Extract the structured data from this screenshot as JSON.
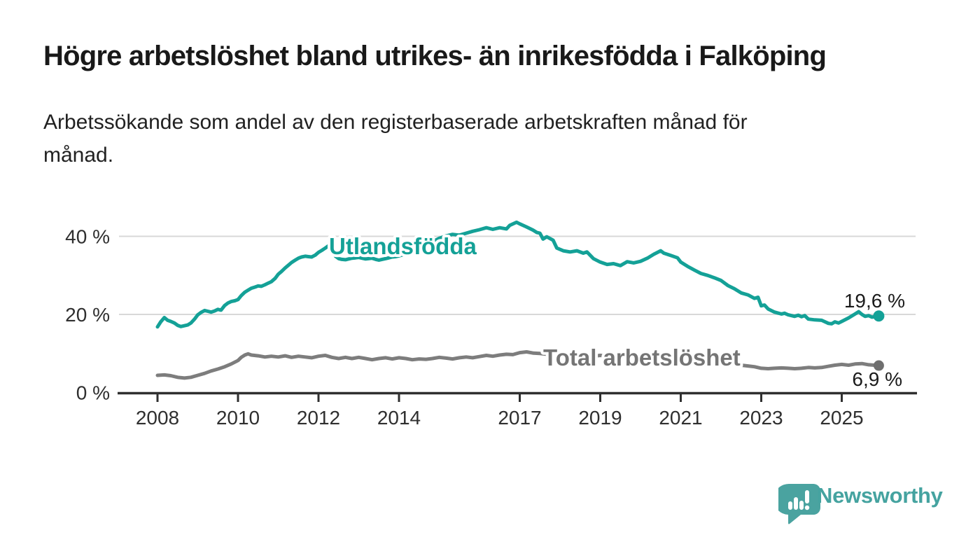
{
  "header": {
    "title": "Högre arbetslöshet bland utrikes- än inrikesfödda i Falköping",
    "subtitle_line1": "Arbetssökande som andel av den registerbaserade arbetskraften månad för",
    "subtitle_line2": "månad."
  },
  "footer": {
    "brand": "Newsworthy",
    "brand_color": "#45a3a0"
  },
  "colors": {
    "teal": "#14a197",
    "gray_line": "#7d7d7d",
    "gray_dot": "#6f6f6f",
    "gray_label": "#757575",
    "gridline": "#d8d8d8",
    "axis": "#2f2f2f",
    "tick_text": "#2f2f2f",
    "value_label": "#1a1a1a"
  },
  "chart_data": {
    "type": "line",
    "title": "",
    "xlabel": "",
    "ylabel": "",
    "x_ticks": [
      2008,
      2010,
      2012,
      2014,
      2017,
      2019,
      2021,
      2023,
      2025
    ],
    "y_ticks": [
      {
        "v": 0,
        "label": "0 %"
      },
      {
        "v": 20,
        "label": "20 %"
      },
      {
        "v": 40,
        "label": "40 %"
      }
    ],
    "xlim": [
      2008,
      2026.1
    ],
    "ylim": [
      0,
      46
    ],
    "grid": "horizontal-only",
    "legend_position": "inline-labels",
    "series": [
      {
        "name": "Utlandsfödda",
        "color": "#14a197",
        "end_label": "19,6 %",
        "end_value": 19.6,
        "points": [
          [
            2008.0,
            16.8
          ],
          [
            2008.08,
            18.1
          ],
          [
            2008.17,
            19.2
          ],
          [
            2008.25,
            18.5
          ],
          [
            2008.33,
            18.2
          ],
          [
            2008.42,
            17.8
          ],
          [
            2008.5,
            17.2
          ],
          [
            2008.58,
            16.9
          ],
          [
            2008.75,
            17.3
          ],
          [
            2008.83,
            17.8
          ],
          [
            2008.92,
            18.8
          ],
          [
            2009.0,
            19.9
          ],
          [
            2009.08,
            20.5
          ],
          [
            2009.17,
            21.0
          ],
          [
            2009.25,
            20.8
          ],
          [
            2009.33,
            20.6
          ],
          [
            2009.42,
            20.9
          ],
          [
            2009.5,
            21.3
          ],
          [
            2009.58,
            21.1
          ],
          [
            2009.67,
            22.3
          ],
          [
            2009.75,
            22.9
          ],
          [
            2009.83,
            23.3
          ],
          [
            2009.92,
            23.5
          ],
          [
            2010.0,
            23.8
          ],
          [
            2010.08,
            24.8
          ],
          [
            2010.17,
            25.7
          ],
          [
            2010.25,
            26.2
          ],
          [
            2010.33,
            26.7
          ],
          [
            2010.42,
            27.0
          ],
          [
            2010.5,
            27.3
          ],
          [
            2010.58,
            27.2
          ],
          [
            2010.67,
            27.6
          ],
          [
            2010.75,
            28.0
          ],
          [
            2010.83,
            28.4
          ],
          [
            2010.92,
            29.2
          ],
          [
            2011.0,
            30.3
          ],
          [
            2011.08,
            31.0
          ],
          [
            2011.17,
            31.9
          ],
          [
            2011.25,
            32.6
          ],
          [
            2011.33,
            33.3
          ],
          [
            2011.42,
            33.9
          ],
          [
            2011.5,
            34.4
          ],
          [
            2011.58,
            34.7
          ],
          [
            2011.67,
            34.9
          ],
          [
            2011.75,
            34.8
          ],
          [
            2011.83,
            34.7
          ],
          [
            2011.92,
            35.2
          ],
          [
            2012.0,
            35.9
          ],
          [
            2012.08,
            36.4
          ],
          [
            2012.17,
            37.0
          ],
          [
            2012.25,
            37.6
          ],
          [
            2012.33,
            36.7
          ],
          [
            2012.42,
            34.9
          ],
          [
            2012.5,
            34.3
          ],
          [
            2012.58,
            34.1
          ],
          [
            2012.67,
            34.0
          ],
          [
            2012.75,
            34.2
          ],
          [
            2012.83,
            34.4
          ],
          [
            2012.92,
            34.5
          ],
          [
            2013.0,
            34.6
          ],
          [
            2013.08,
            34.4
          ],
          [
            2013.17,
            34.2
          ],
          [
            2013.25,
            34.3
          ],
          [
            2013.33,
            34.4
          ],
          [
            2013.42,
            34.1
          ],
          [
            2013.5,
            33.9
          ],
          [
            2013.58,
            34.1
          ],
          [
            2013.67,
            34.3
          ],
          [
            2013.75,
            34.5
          ],
          [
            2013.83,
            34.7
          ],
          [
            2013.92,
            34.8
          ],
          [
            2014.0,
            35.0
          ],
          [
            2014.17,
            35.5
          ],
          [
            2014.33,
            36.1
          ],
          [
            2014.5,
            36.8
          ],
          [
            2014.67,
            37.6
          ],
          [
            2014.83,
            38.6
          ],
          [
            2015.0,
            39.5
          ],
          [
            2015.17,
            40.1
          ],
          [
            2015.33,
            40.5
          ],
          [
            2015.5,
            40.3
          ],
          [
            2015.67,
            40.8
          ],
          [
            2015.83,
            41.3
          ],
          [
            2016.0,
            41.7
          ],
          [
            2016.17,
            42.2
          ],
          [
            2016.33,
            41.8
          ],
          [
            2016.5,
            42.2
          ],
          [
            2016.67,
            41.9
          ],
          [
            2016.75,
            42.8
          ],
          [
            2016.92,
            43.6
          ],
          [
            2017.0,
            43.2
          ],
          [
            2017.17,
            42.4
          ],
          [
            2017.33,
            41.6
          ],
          [
            2017.42,
            41.0
          ],
          [
            2017.5,
            40.8
          ],
          [
            2017.58,
            39.3
          ],
          [
            2017.67,
            39.9
          ],
          [
            2017.83,
            39.0
          ],
          [
            2017.92,
            37.0
          ],
          [
            2018.08,
            36.3
          ],
          [
            2018.25,
            36.0
          ],
          [
            2018.42,
            36.3
          ],
          [
            2018.58,
            35.7
          ],
          [
            2018.67,
            36.0
          ],
          [
            2018.83,
            34.3
          ],
          [
            2019.0,
            33.4
          ],
          [
            2019.17,
            32.8
          ],
          [
            2019.33,
            33.0
          ],
          [
            2019.5,
            32.5
          ],
          [
            2019.67,
            33.5
          ],
          [
            2019.83,
            33.2
          ],
          [
            2020.0,
            33.6
          ],
          [
            2020.17,
            34.4
          ],
          [
            2020.33,
            35.4
          ],
          [
            2020.5,
            36.3
          ],
          [
            2020.58,
            35.7
          ],
          [
            2020.75,
            35.1
          ],
          [
            2020.92,
            34.5
          ],
          [
            2021.0,
            33.4
          ],
          [
            2021.17,
            32.3
          ],
          [
            2021.33,
            31.4
          ],
          [
            2021.5,
            30.5
          ],
          [
            2021.67,
            30.0
          ],
          [
            2021.83,
            29.4
          ],
          [
            2022.0,
            28.7
          ],
          [
            2022.17,
            27.4
          ],
          [
            2022.33,
            26.6
          ],
          [
            2022.5,
            25.5
          ],
          [
            2022.67,
            25.0
          ],
          [
            2022.83,
            24.1
          ],
          [
            2022.92,
            24.4
          ],
          [
            2023.0,
            22.2
          ],
          [
            2023.08,
            22.4
          ],
          [
            2023.17,
            21.4
          ],
          [
            2023.33,
            20.6
          ],
          [
            2023.5,
            20.1
          ],
          [
            2023.58,
            20.3
          ],
          [
            2023.67,
            19.9
          ],
          [
            2023.83,
            19.5
          ],
          [
            2023.92,
            19.8
          ],
          [
            2024.0,
            19.4
          ],
          [
            2024.08,
            19.7
          ],
          [
            2024.17,
            18.8
          ],
          [
            2024.33,
            18.6
          ],
          [
            2024.5,
            18.5
          ],
          [
            2024.67,
            17.7
          ],
          [
            2024.75,
            17.6
          ],
          [
            2024.83,
            18.1
          ],
          [
            2024.92,
            17.8
          ],
          [
            2025.0,
            18.2
          ],
          [
            2025.17,
            19.1
          ],
          [
            2025.33,
            20.1
          ],
          [
            2025.42,
            20.7
          ],
          [
            2025.5,
            20.0
          ],
          [
            2025.58,
            19.5
          ],
          [
            2025.67,
            19.7
          ],
          [
            2025.75,
            19.3
          ],
          [
            2025.92,
            19.6
          ]
        ]
      },
      {
        "name": "Total arbetslöshet",
        "color": "#7d7d7d",
        "end_label": "6,9 %",
        "end_value": 6.9,
        "points": [
          [
            2008.0,
            4.4
          ],
          [
            2008.17,
            4.5
          ],
          [
            2008.33,
            4.3
          ],
          [
            2008.5,
            3.9
          ],
          [
            2008.67,
            3.7
          ],
          [
            2008.83,
            3.9
          ],
          [
            2009.0,
            4.4
          ],
          [
            2009.17,
            4.9
          ],
          [
            2009.33,
            5.5
          ],
          [
            2009.5,
            6.0
          ],
          [
            2009.67,
            6.6
          ],
          [
            2009.83,
            7.3
          ],
          [
            2010.0,
            8.2
          ],
          [
            2010.08,
            9.0
          ],
          [
            2010.17,
            9.6
          ],
          [
            2010.25,
            9.9
          ],
          [
            2010.33,
            9.6
          ],
          [
            2010.5,
            9.4
          ],
          [
            2010.67,
            9.1
          ],
          [
            2010.83,
            9.3
          ],
          [
            2011.0,
            9.1
          ],
          [
            2011.17,
            9.4
          ],
          [
            2011.33,
            9.0
          ],
          [
            2011.5,
            9.3
          ],
          [
            2011.67,
            9.1
          ],
          [
            2011.83,
            8.9
          ],
          [
            2012.0,
            9.3
          ],
          [
            2012.17,
            9.5
          ],
          [
            2012.33,
            9.0
          ],
          [
            2012.5,
            8.7
          ],
          [
            2012.67,
            9.0
          ],
          [
            2012.83,
            8.7
          ],
          [
            2013.0,
            9.0
          ],
          [
            2013.17,
            8.7
          ],
          [
            2013.33,
            8.4
          ],
          [
            2013.5,
            8.7
          ],
          [
            2013.67,
            8.9
          ],
          [
            2013.83,
            8.6
          ],
          [
            2014.0,
            8.9
          ],
          [
            2014.17,
            8.7
          ],
          [
            2014.33,
            8.4
          ],
          [
            2014.5,
            8.6
          ],
          [
            2014.67,
            8.5
          ],
          [
            2014.83,
            8.7
          ],
          [
            2015.0,
            9.0
          ],
          [
            2015.17,
            8.8
          ],
          [
            2015.33,
            8.6
          ],
          [
            2015.5,
            8.9
          ],
          [
            2015.67,
            9.1
          ],
          [
            2015.83,
            8.9
          ],
          [
            2016.0,
            9.2
          ],
          [
            2016.17,
            9.5
          ],
          [
            2016.33,
            9.3
          ],
          [
            2016.5,
            9.6
          ],
          [
            2016.67,
            9.8
          ],
          [
            2016.83,
            9.7
          ],
          [
            2017.0,
            10.2
          ],
          [
            2017.17,
            10.4
          ],
          [
            2017.33,
            10.1
          ],
          [
            2017.5,
            10.0
          ],
          [
            2017.67,
            9.8
          ],
          [
            2017.83,
            9.6
          ],
          [
            2018.0,
            9.9
          ],
          [
            2018.17,
            9.7
          ],
          [
            2018.33,
            9.5
          ],
          [
            2018.5,
            9.7
          ],
          [
            2018.67,
            9.5
          ],
          [
            2018.83,
            9.3
          ],
          [
            2019.0,
            9.5
          ],
          [
            2019.17,
            9.3
          ],
          [
            2019.33,
            9.1
          ],
          [
            2019.5,
            9.3
          ],
          [
            2019.67,
            9.4
          ],
          [
            2019.83,
            9.2
          ],
          [
            2020.0,
            9.3
          ],
          [
            2020.17,
            9.6
          ],
          [
            2020.33,
            9.9
          ],
          [
            2020.5,
            10.0
          ],
          [
            2020.67,
            9.8
          ],
          [
            2020.83,
            9.5
          ],
          [
            2021.0,
            9.2
          ],
          [
            2021.17,
            8.9
          ],
          [
            2021.33,
            8.6
          ],
          [
            2021.5,
            8.3
          ],
          [
            2021.67,
            8.1
          ],
          [
            2021.83,
            7.9
          ],
          [
            2022.0,
            7.7
          ],
          [
            2022.17,
            7.4
          ],
          [
            2022.33,
            7.1
          ],
          [
            2022.5,
            7.0
          ],
          [
            2022.67,
            6.8
          ],
          [
            2022.83,
            6.6
          ],
          [
            2023.0,
            6.2
          ],
          [
            2023.17,
            6.1
          ],
          [
            2023.33,
            6.2
          ],
          [
            2023.5,
            6.3
          ],
          [
            2023.67,
            6.2
          ],
          [
            2023.83,
            6.1
          ],
          [
            2024.0,
            6.2
          ],
          [
            2024.17,
            6.4
          ],
          [
            2024.33,
            6.3
          ],
          [
            2024.5,
            6.4
          ],
          [
            2024.67,
            6.7
          ],
          [
            2024.83,
            7.0
          ],
          [
            2025.0,
            7.2
          ],
          [
            2025.17,
            7.0
          ],
          [
            2025.33,
            7.3
          ],
          [
            2025.5,
            7.4
          ],
          [
            2025.67,
            7.1
          ],
          [
            2025.92,
            6.9
          ]
        ]
      }
    ]
  }
}
